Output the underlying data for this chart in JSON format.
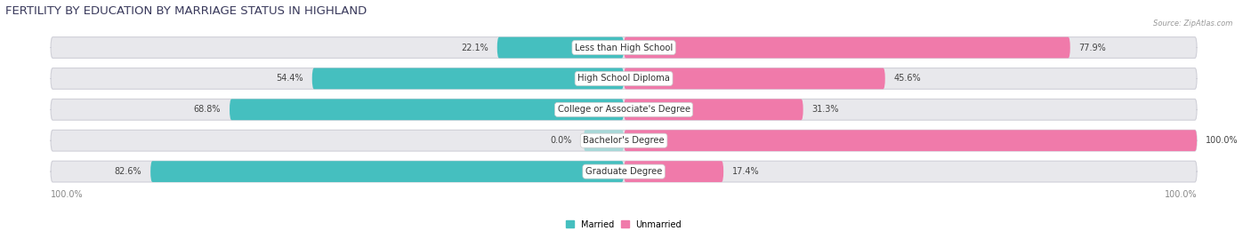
{
  "title": "FERTILITY BY EDUCATION BY MARRIAGE STATUS IN HIGHLAND",
  "source": "Source: ZipAtlas.com",
  "categories": [
    "Less than High School",
    "High School Diploma",
    "College or Associate's Degree",
    "Bachelor's Degree",
    "Graduate Degree"
  ],
  "married": [
    22.1,
    54.4,
    68.8,
    0.0,
    82.6
  ],
  "unmarried": [
    77.9,
    45.6,
    31.3,
    100.0,
    17.4
  ],
  "married_color": "#45bfbf",
  "married_light_color": "#a8d8d8",
  "unmarried_color": "#f07aaa",
  "bar_bg_color": "#e8e8ec",
  "bar_bg_outline": "#d0d0d8",
  "title_color": "#3a3a5c",
  "label_color": "#444444",
  "source_color": "#999999",
  "title_fontsize": 9.5,
  "label_fontsize": 7.0,
  "cat_fontsize": 7.2,
  "figsize": [
    14.06,
    2.69
  ],
  "dpi": 100,
  "x_left_label": "100.0%",
  "x_right_label": "100.0%"
}
